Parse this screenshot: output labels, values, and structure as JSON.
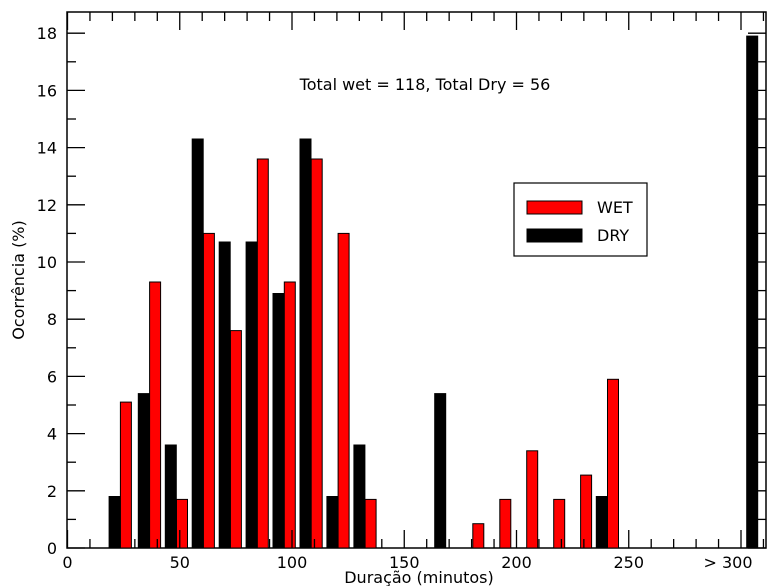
{
  "chart_data": {
    "type": "bar",
    "title": "",
    "annotation": "Total wet = 118, Total Dry = 56",
    "xlabel": "Duração (minutos)",
    "ylabel": "Ocorrência (%)",
    "xlim": [
      0,
      310
    ],
    "ylim": [
      0,
      18.7
    ],
    "x_ticks": [
      "0",
      "50",
      "100",
      "150",
      "200",
      "250",
      "> 300"
    ],
    "y_ticks": [
      "0",
      "2",
      "4",
      "6",
      "8",
      "10",
      "12",
      "14",
      "16",
      "18"
    ],
    "legend_position": "upper-right",
    "series": [
      {
        "name": "WET",
        "color": "#ff0000",
        "x": [
          26,
          39,
          51,
          63,
          75,
          87,
          99,
          111,
          123,
          135,
          183,
          195,
          207,
          219,
          231,
          243
        ],
        "values": [
          5.1,
          9.3,
          1.7,
          11.0,
          7.6,
          13.6,
          9.3,
          13.6,
          11.0,
          1.7,
          0.85,
          1.7,
          3.4,
          1.7,
          2.55,
          5.9
        ]
      },
      {
        "name": "DRY",
        "color": "#000000",
        "x": [
          21,
          34,
          46,
          58,
          70,
          82,
          94,
          106,
          118,
          130,
          166,
          238,
          305
        ],
        "values": [
          1.8,
          5.4,
          3.6,
          14.3,
          10.7,
          10.7,
          8.9,
          14.3,
          1.8,
          3.6,
          5.4,
          1.8,
          17.9
        ]
      }
    ]
  }
}
